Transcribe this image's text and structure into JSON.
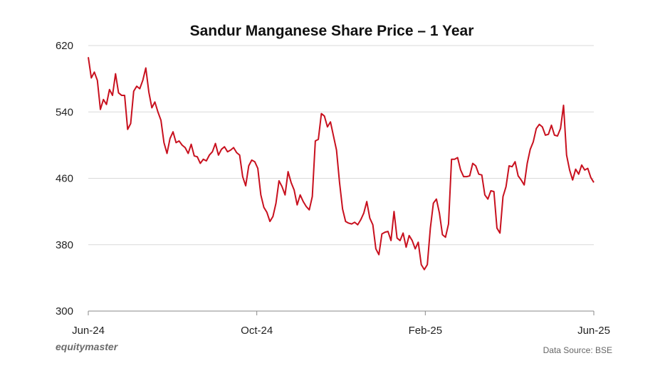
{
  "chart_data": {
    "type": "line",
    "title": "Sandur Manganese Share Price – 1 Year",
    "xlabel": "",
    "ylabel": "",
    "ylim": [
      300,
      620
    ],
    "yticks": [
      "620",
      "540",
      "460",
      "380",
      "300"
    ],
    "xticks": [
      "Jun-24",
      "Oct-24",
      "Feb-25",
      "Jun-25"
    ],
    "grid": true,
    "line_color": "#c8101e",
    "series": [
      {
        "values": [
          606,
          581,
          588,
          578,
          543,
          555,
          549,
          567,
          560,
          586,
          563,
          560,
          560,
          519,
          526,
          565,
          571,
          568,
          578,
          593,
          564,
          545,
          552,
          540,
          530,
          503,
          490,
          508,
          516,
          503,
          505,
          500,
          497,
          490,
          501,
          487,
          486,
          478,
          483,
          481,
          488,
          492,
          502,
          488,
          495,
          498,
          492,
          494,
          497,
          491,
          488,
          462,
          451,
          475,
          482,
          480,
          472,
          440,
          425,
          419,
          408,
          414,
          430,
          457,
          450,
          440,
          468,
          455,
          446,
          428,
          440,
          432,
          426,
          422,
          438,
          505,
          507,
          538,
          535,
          522,
          528,
          511,
          494,
          455,
          423,
          408,
          406,
          405,
          407,
          404,
          410,
          418,
          432,
          412,
          404,
          375,
          368,
          393,
          395,
          396,
          385,
          420,
          388,
          385,
          394,
          377,
          391,
          385,
          375,
          383,
          356,
          350,
          356,
          400,
          430,
          435,
          418,
          392,
          389,
          405,
          483,
          483,
          485,
          470,
          462,
          462,
          463,
          478,
          475,
          465,
          464,
          440,
          435,
          445,
          444,
          400,
          394,
          438,
          450,
          475,
          474,
          480,
          463,
          458,
          452,
          478,
          495,
          504,
          520,
          525,
          522,
          512,
          513,
          524,
          512,
          511,
          520,
          548,
          488,
          470,
          458,
          471,
          465,
          476,
          470,
          472,
          461,
          455
        ],
        "start_label": "Jun-24",
        "end_label": "Jun-25"
      }
    ]
  },
  "brand": "equitymaster",
  "source": "Data Source: BSE"
}
